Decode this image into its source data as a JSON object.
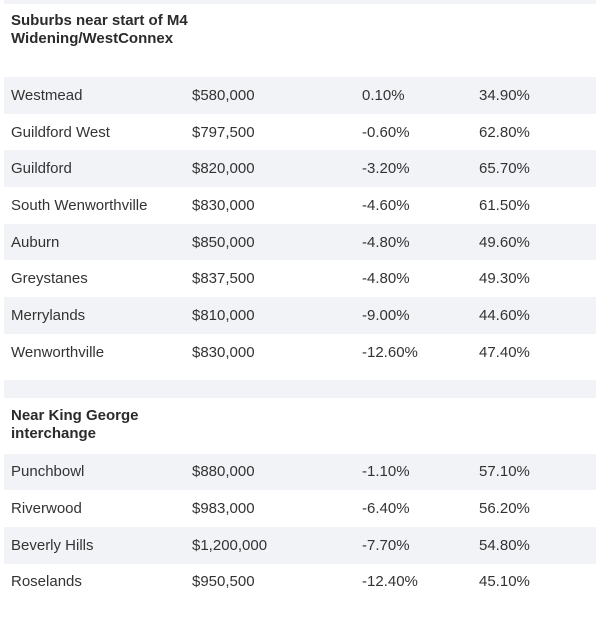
{
  "sections": [
    {
      "title": "Suburbs near start of M4 Widening/WestConnex",
      "rows": [
        {
          "suburb": "Westmead",
          "price": "$580,000",
          "change": "0.10%",
          "growth": "34.90%"
        },
        {
          "suburb": "Guildford West",
          "price": "$797,500",
          "change": "-0.60%",
          "growth": "62.80%"
        },
        {
          "suburb": "Guildford",
          "price": "$820,000",
          "change": "-3.20%",
          "growth": "65.70%"
        },
        {
          "suburb": "South Wenworthville",
          "price": "$830,000",
          "change": "-4.60%",
          "growth": "61.50%"
        },
        {
          "suburb": "Auburn",
          "price": "$850,000",
          "change": "-4.80%",
          "growth": "49.60%"
        },
        {
          "suburb": "Greystanes",
          "price": "$837,500",
          "change": "-4.80%",
          "growth": "49.30%"
        },
        {
          "suburb": "Merrylands",
          "price": "$810,000",
          "change": "-9.00%",
          "growth": "44.60%"
        },
        {
          "suburb": "Wenworthville",
          "price": "$830,000",
          "change": "-12.60%",
          "growth": "47.40%"
        }
      ]
    },
    {
      "title": "Near King George interchange",
      "rows": [
        {
          "suburb": "Punchbowl",
          "price": "$880,000",
          "change": "-1.10%",
          "growth": "57.10%"
        },
        {
          "suburb": "Riverwood",
          "price": "$983,000",
          "change": "-6.40%",
          "growth": "56.20%"
        },
        {
          "suburb": "Beverly Hills",
          "price": "$1,200,000",
          "change": "-7.70%",
          "growth": "54.80%"
        },
        {
          "suburb": "Roselands",
          "price": "$950,500",
          "change": "-12.40%",
          "growth": "45.10%"
        }
      ]
    }
  ],
  "colors": {
    "band": "#f1f3f6",
    "text": "#333333"
  }
}
